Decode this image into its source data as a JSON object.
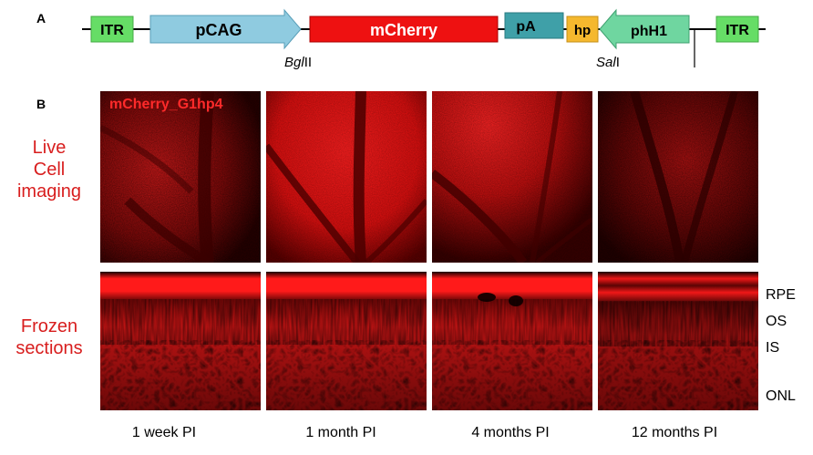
{
  "panel_a": {
    "letter": "A",
    "elements": [
      {
        "label": "ITR",
        "color": "#66dd66"
      },
      {
        "label": "pCAG",
        "color": "#8fcbe0"
      },
      {
        "label": "mCherry",
        "color": "#ee1111"
      },
      {
        "label": "pA",
        "color": "#3fa0a8"
      },
      {
        "label": "hp",
        "color": "#f5b82e"
      },
      {
        "label": "phH1",
        "color": "#6fd6a0"
      },
      {
        "label": "ITR",
        "color": "#66dd66"
      }
    ],
    "sites": {
      "bglii": {
        "italic": "Bgl",
        "roman": "II"
      },
      "sali": {
        "italic": "Sal",
        "roman": "I"
      }
    }
  },
  "panel_b": {
    "letter": "B",
    "image_caption": "mCherry_G1hp4",
    "rows": [
      {
        "label_lines": [
          "Live",
          "Cell",
          "imaging"
        ]
      },
      {
        "label_lines": [
          "Frozen",
          "sections"
        ]
      }
    ],
    "layer_labels": [
      "RPE",
      "OS",
      "IS",
      "ONL"
    ],
    "time_points": [
      "1 week PI",
      "1 month PI",
      "4 months PI",
      "12 months PI"
    ]
  }
}
